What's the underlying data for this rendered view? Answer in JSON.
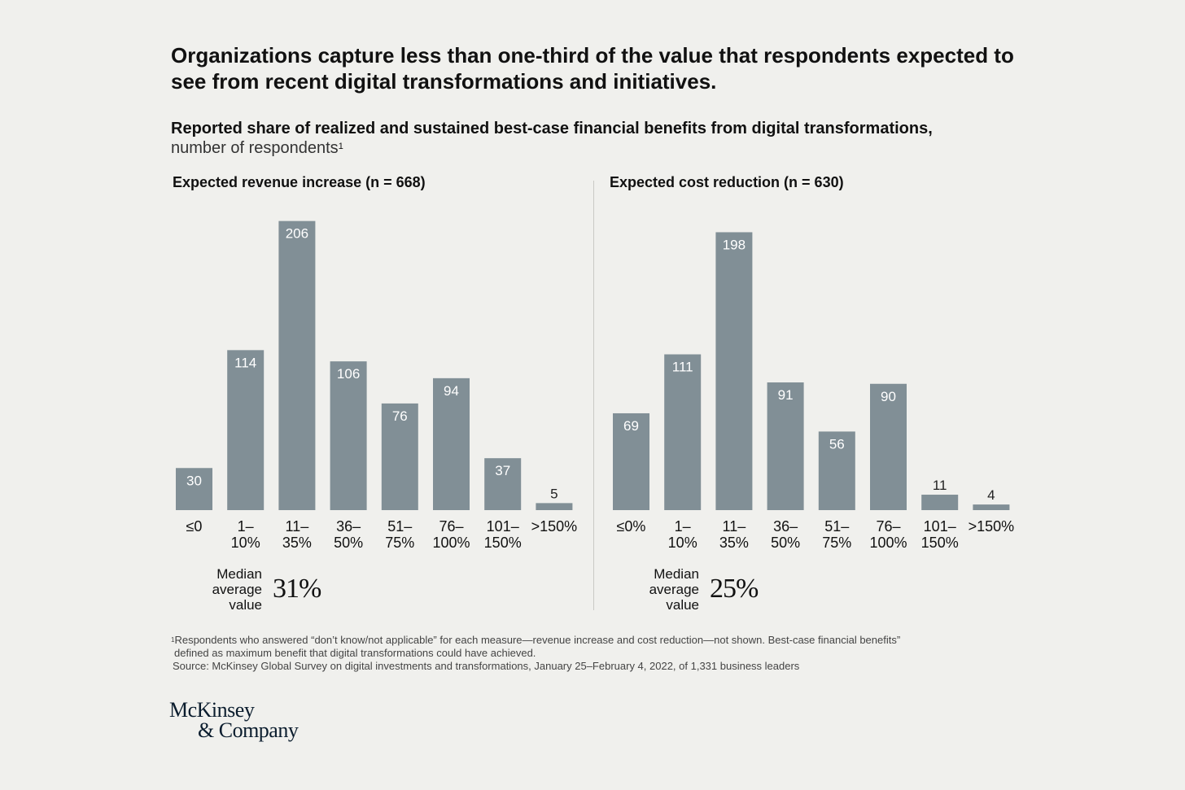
{
  "title": "Organizations capture less than one-third of the value that respondents expected to see from recent digital transformations and initiatives.",
  "subtitle": {
    "main": "Reported share of realized and sustained best-case financial benefits from digital transformations,",
    "unit": "number of respondents",
    "footnote_mark": "1"
  },
  "median_label": {
    "line1": "Median",
    "line2": "average",
    "line3": "value"
  },
  "chart_data": [
    {
      "type": "bar",
      "title": "Expected revenue increase (n = 668)",
      "categories": [
        [
          "≤0"
        ],
        [
          "1–",
          "10%"
        ],
        [
          "11–",
          "35%"
        ],
        [
          "36–",
          "50%"
        ],
        [
          "51–",
          "75%"
        ],
        [
          "76–",
          "100%"
        ],
        [
          "101–",
          "150%"
        ],
        [
          ">150%"
        ]
      ],
      "values": [
        30,
        114,
        206,
        106,
        76,
        94,
        37,
        5
      ],
      "ylim": [
        0,
        210
      ],
      "median": "31%"
    },
    {
      "type": "bar",
      "title": "Expected cost reduction (n = 630)",
      "categories": [
        [
          "≤0%"
        ],
        [
          "1–",
          "10%"
        ],
        [
          "11–",
          "35%"
        ],
        [
          "36–",
          "50%"
        ],
        [
          "51–",
          "75%"
        ],
        [
          "76–",
          "100%"
        ],
        [
          "101–",
          "150%"
        ],
        [
          ">150%"
        ]
      ],
      "values": [
        69,
        111,
        198,
        91,
        56,
        90,
        11,
        4
      ],
      "ylim": [
        0,
        210
      ],
      "median": "25%"
    }
  ],
  "footnotes": {
    "mark": "1",
    "line1": "Respondents who answered “don’t know/not applicable” for each measure—revenue increase and cost reduction—not shown. Best-case financial benefits”",
    "line2": "defined as maximum benefit that digital transformations could have achieved.",
    "line3": "Source: McKinsey Global Survey on digital investments and transformations, January 25–February 4, 2022, of 1,331 business leaders"
  },
  "logo": {
    "line1": "McKinsey",
    "line2": "& Company"
  }
}
